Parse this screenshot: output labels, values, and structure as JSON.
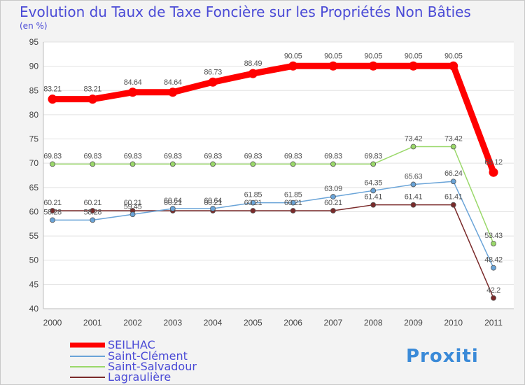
{
  "chart_data": {
    "type": "line",
    "title": "Evolution du Taux de Taxe Foncière sur les Propriétés Non Bâties",
    "subtitle": "(en %)",
    "xlabel": "",
    "ylabel": "",
    "ylim": [
      40,
      95
    ],
    "yticks": [
      40,
      45,
      50,
      55,
      60,
      65,
      70,
      75,
      80,
      85,
      90,
      95
    ],
    "grid": true,
    "legend_position": "bottom-left",
    "x": [
      "2000",
      "2001",
      "2002",
      "2003",
      "2004",
      "2005",
      "2006",
      "2007",
      "2008",
      "2009",
      "2010",
      "2011"
    ],
    "series": [
      {
        "name": "SEILHAC",
        "color": "#ff0000",
        "width": "thick",
        "values": [
          83.21,
          83.21,
          84.64,
          84.64,
          86.73,
          88.49,
          90.05,
          90.05,
          90.05,
          90.05,
          90.05,
          68.12
        ],
        "labels": [
          "83.21",
          "83.21",
          "84.64",
          "84.64",
          "86.73",
          "88.49",
          "90.05",
          "90.05",
          "90.05",
          "90.05",
          "90.05",
          "68.12"
        ]
      },
      {
        "name": "Saint-Clément",
        "color": "#6aa4d8",
        "width": "thin",
        "values": [
          58.28,
          58.28,
          59.45,
          60.64,
          60.64,
          61.85,
          61.85,
          63.09,
          64.35,
          65.63,
          66.24,
          48.42
        ],
        "labels": [
          "58.28",
          "58.28",
          "59.45",
          "60.64",
          "60.64",
          "61.85",
          "61.85",
          "63.09",
          "64.35",
          "65.63",
          "66.24",
          "48.42"
        ]
      },
      {
        "name": "Saint-Salvadour",
        "color": "#9ad86a",
        "width": "thin",
        "values": [
          69.83,
          69.83,
          69.83,
          69.83,
          69.83,
          69.83,
          69.83,
          69.83,
          69.83,
          73.42,
          73.42,
          53.43
        ],
        "labels": [
          "69.83",
          "69.83",
          "69.83",
          "69.83",
          "69.83",
          "69.83",
          "69.83",
          "69.83",
          "69.83",
          "73.42",
          "73.42",
          "53.43"
        ]
      },
      {
        "name": "Lagraulière",
        "color": "#7a2a2a",
        "width": "thin",
        "values": [
          60.21,
          60.21,
          60.21,
          60.21,
          60.21,
          60.21,
          60.21,
          60.21,
          61.41,
          61.41,
          61.41,
          42.2
        ],
        "labels": [
          "60.21",
          "60.21",
          "60.21",
          "60.21",
          "60.21",
          "60.21",
          "60.21",
          "60.21",
          "61.41",
          "61.41",
          "61.41",
          "42.2"
        ]
      }
    ]
  },
  "logo": {
    "text": "Proxiti"
  }
}
